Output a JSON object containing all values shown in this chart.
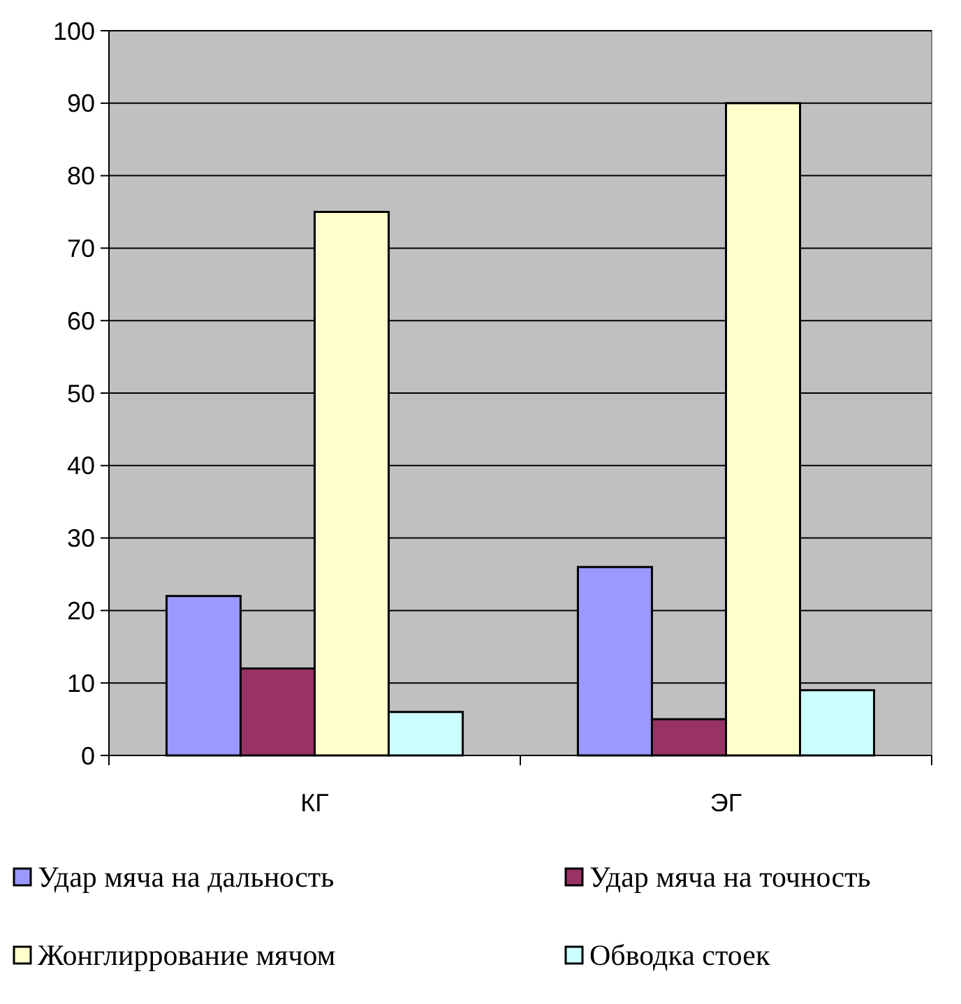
{
  "chart_data": {
    "type": "bar",
    "categories": [
      "КГ",
      "ЭГ"
    ],
    "series": [
      {
        "name": "Удар мяча на дальность",
        "color": "#9999ff",
        "values": [
          22,
          26
        ]
      },
      {
        "name": "Удар мяча на точность",
        "color": "#993366",
        "values": [
          12,
          5
        ]
      },
      {
        "name": "Жонглиррование мячом",
        "color": "#ffffcc",
        "values": [
          75,
          90
        ]
      },
      {
        "name": "Обводка стоек",
        "color": "#ccffff",
        "values": [
          6,
          9
        ]
      }
    ],
    "ylim": [
      0,
      100
    ],
    "yticks": [
      0,
      10,
      20,
      30,
      40,
      50,
      60,
      70,
      80,
      90,
      100
    ],
    "grid": "y",
    "legend": "bottom"
  }
}
